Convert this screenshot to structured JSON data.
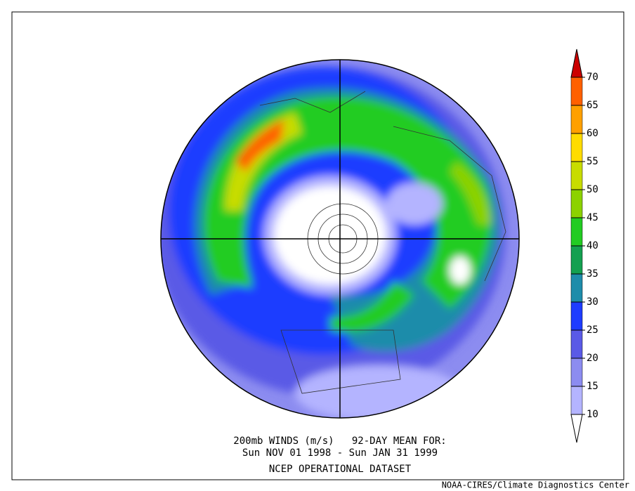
{
  "title_lines": [
    "200mb WINDS (m/s)   92-DAY MEAN FOR:",
    "Sun NOV 01 1998 - Sun JAN 31 1999"
  ],
  "dataset": "NCEP OPERATIONAL DATASET",
  "credit": "NOAA-CIRES/Climate Diagnostics Center",
  "colorbar": {
    "levels": [
      10,
      15,
      20,
      25,
      30,
      35,
      40,
      45,
      50,
      55,
      60,
      65,
      70
    ],
    "colors": [
      "#ffffff",
      "#b4b4ff",
      "#8c8cf0",
      "#5a5ae6",
      "#1e3cff",
      "#1e8caa",
      "#14a050",
      "#22cc22",
      "#8cd200",
      "#c8dc00",
      "#ffdc00",
      "#ffa000",
      "#ff6000",
      "#cc0000"
    ]
  }
}
